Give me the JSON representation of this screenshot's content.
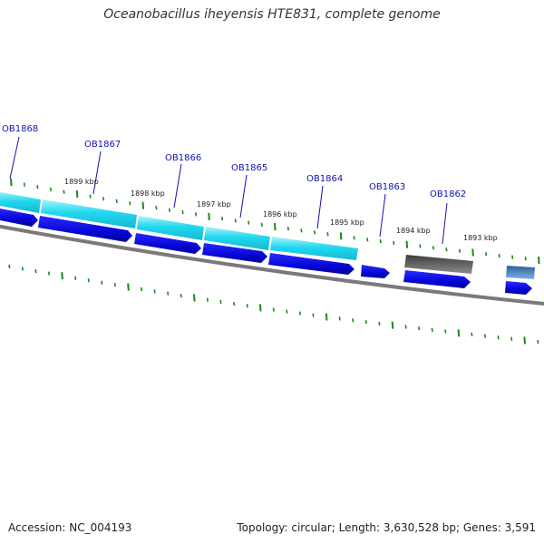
{
  "title": "Oceanobacillus iheyensis HTE831, complete genome",
  "footer": {
    "accession": "Accession: NC_004193",
    "stats": "Topology: circular; Length: 3,630,528 bp; Genes: 3,591"
  },
  "genes": [
    "OB1868",
    "OB1867",
    "OB1866",
    "OB1865",
    "OB1864",
    "OB1863",
    "OB1862"
  ],
  "kbp_labels": [
    "1899 kbp",
    "1898 kbp",
    "1897 kbp",
    "1896 kbp",
    "1895 kbp",
    "1894 kbp",
    "1893 kbp"
  ],
  "colors": {
    "cds": "#0a0adc",
    "cds_light": "#22d8f0",
    "pseudo": "#6a6a6a",
    "other": "#4a84b8",
    "backbone": "#808080",
    "ticks": "#1a8a1a",
    "gene_label": "#1212b4"
  }
}
